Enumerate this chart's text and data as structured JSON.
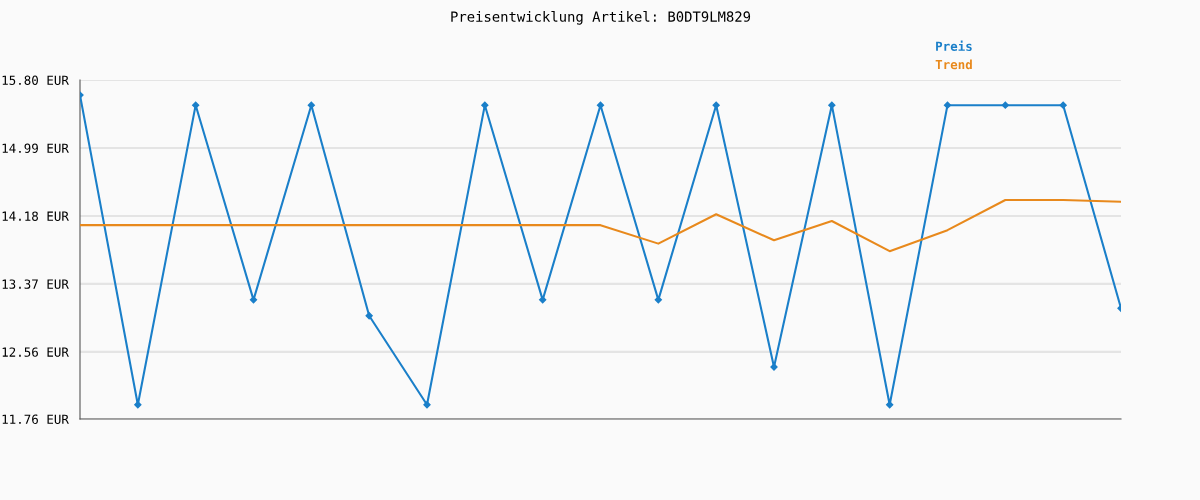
{
  "chart_data": {
    "type": "line",
    "title": "Preisentwicklung Artikel: B0DT9LM829",
    "categories": [
      null,
      null,
      null,
      null,
      null,
      null,
      null,
      null,
      null,
      null,
      null,
      null,
      null,
      null,
      null,
      null,
      null,
      null,
      null
    ],
    "series": [
      {
        "name": "Preis",
        "color": "#1a7fc9",
        "marker": "diamond",
        "values": [
          15.62,
          11.93,
          15.5,
          13.18,
          15.5,
          12.99,
          11.93,
          15.5,
          13.18,
          15.5,
          13.18,
          15.5,
          12.38,
          15.5,
          11.93,
          15.5,
          15.5,
          15.5,
          13.08
        ]
      },
      {
        "name": "Trend",
        "color": "#e8891c",
        "marker": "none",
        "values": [
          14.07,
          14.07,
          14.07,
          14.07,
          14.07,
          14.07,
          14.07,
          14.07,
          14.07,
          14.07,
          13.85,
          14.2,
          13.89,
          14.12,
          13.76,
          14.01,
          14.37,
          14.37,
          14.35
        ]
      }
    ],
    "ylim": [
      11.76,
      15.8
    ],
    "yticks": [
      {
        "value": 11.76,
        "label": "11.76 EUR"
      },
      {
        "value": 12.56,
        "label": "12.56 EUR"
      },
      {
        "value": 13.37,
        "label": "13.37 EUR"
      },
      {
        "value": 14.18,
        "label": "14.18 EUR"
      },
      {
        "value": 14.99,
        "label": "14.99 EUR"
      },
      {
        "value": 15.8,
        "label": "15.80 EUR"
      }
    ],
    "grid": "y",
    "legend": "top right",
    "line_style": "solid"
  }
}
